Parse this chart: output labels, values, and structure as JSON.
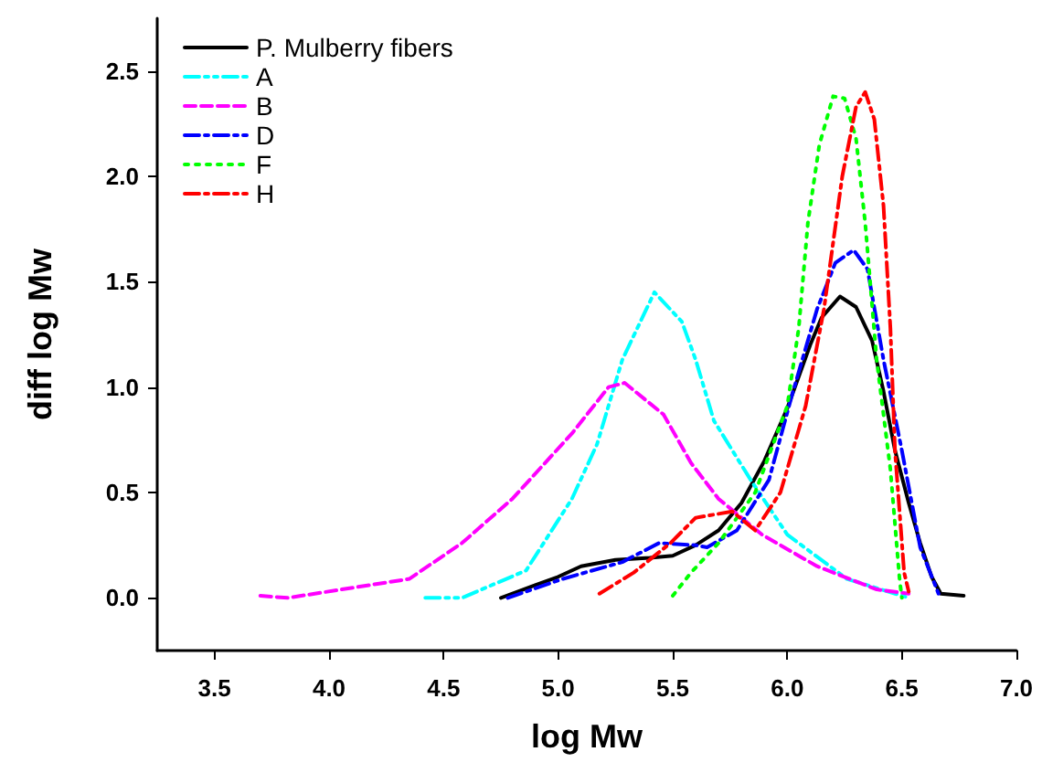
{
  "chart_data": {
    "type": "line",
    "xlabel": "log Mw",
    "ylabel": "diff log Mw",
    "xlim": [
      3.25,
      7.0
    ],
    "ylim": [
      -0.25,
      2.75
    ],
    "xticks": [
      3.5,
      {
        "value": 4,
        "label": "4.0"
      },
      4.5,
      {
        "value": 5,
        "label": "5.0"
      },
      5.5,
      {
        "value": 6,
        "label": "6.0"
      },
      6.5,
      {
        "value": 7,
        "label": "7.0"
      }
    ],
    "yticks": [
      {
        "value": 0,
        "label": "0.0"
      },
      0.5,
      {
        "value": 1,
        "label": "1.0"
      },
      1.5,
      {
        "value": 2,
        "label": "2.0"
      },
      2.5
    ],
    "grid": false,
    "legend": "top left",
    "marker": "none",
    "series": [
      {
        "name": "P. Mulberry fibers",
        "color": "#000000",
        "line_style": "solid",
        "x": [
          4.75,
          4.9,
          5.0,
          5.1,
          5.25,
          5.4,
          5.5,
          5.6,
          5.7,
          5.8,
          5.9,
          6.0,
          6.1,
          6.15,
          6.23,
          6.3,
          6.37,
          6.42,
          6.47,
          6.53,
          6.58,
          6.63,
          6.67,
          6.77
        ],
        "values": [
          0,
          0.06,
          0.1,
          0.15,
          0.18,
          0.19,
          0.2,
          0.25,
          0.32,
          0.45,
          0.65,
          0.9,
          1.2,
          1.33,
          1.43,
          1.38,
          1.22,
          0.98,
          0.7,
          0.45,
          0.26,
          0.1,
          0.02,
          0.01
        ]
      },
      {
        "name": "A",
        "color": "#00ffff",
        "line_style": "dashdotdot",
        "x": [
          4.42,
          4.58,
          4.86,
          5.06,
          5.17,
          5.28,
          5.42,
          5.54,
          5.6,
          5.68,
          5.84,
          6.0,
          6.26,
          6.53
        ],
        "values": [
          0,
          0.0,
          0.13,
          0.47,
          0.73,
          1.13,
          1.45,
          1.31,
          1.13,
          0.84,
          0.56,
          0.3,
          0.09,
          0.0
        ]
      },
      {
        "name": "B",
        "color": "#ff00ff",
        "line_style": "dashed",
        "x": [
          3.7,
          3.82,
          4.35,
          4.58,
          4.8,
          5.06,
          5.22,
          5.29,
          5.46,
          5.58,
          5.7,
          5.89,
          6.13,
          6.39,
          6.53
        ],
        "values": [
          0.01,
          0,
          0.09,
          0.26,
          0.47,
          0.78,
          1.0,
          1.02,
          0.87,
          0.64,
          0.47,
          0.3,
          0.15,
          0.04,
          0.02
        ]
      },
      {
        "name": "D",
        "color": "#0000ff",
        "line_style": "dashdot",
        "x": [
          4.78,
          5.02,
          5.28,
          5.44,
          5.6,
          5.65,
          5.78,
          5.92,
          6.02,
          6.13,
          6.21,
          6.29,
          6.35,
          6.42,
          6.5,
          6.58,
          6.66
        ],
        "values": [
          0,
          0.09,
          0.17,
          0.26,
          0.25,
          0.24,
          0.32,
          0.56,
          0.96,
          1.37,
          1.59,
          1.65,
          1.56,
          1.13,
          0.7,
          0.24,
          0.02
        ]
      },
      {
        "name": "F",
        "color": "#00ff00",
        "line_style": "dotted",
        "x": [
          5.5,
          5.58,
          5.7,
          5.86,
          6.0,
          6.05,
          6.09,
          6.14,
          6.2,
          6.25,
          6.3,
          6.34,
          6.39,
          6.45,
          6.49,
          6.5
        ],
        "values": [
          0.01,
          0.12,
          0.26,
          0.5,
          0.91,
          1.28,
          1.78,
          2.15,
          2.38,
          2.37,
          2.18,
          1.78,
          1.13,
          0.61,
          0.09,
          0
        ]
      },
      {
        "name": "H",
        "color": "#ff0000",
        "line_style": "dashdot",
        "x": [
          5.18,
          5.33,
          5.49,
          5.6,
          5.76,
          5.86,
          5.97,
          6.08,
          6.16,
          6.24,
          6.3,
          6.34,
          6.38,
          6.42,
          6.45,
          6.47,
          6.51,
          6.53
        ],
        "values": [
          0.02,
          0.12,
          0.26,
          0.38,
          0.41,
          0.32,
          0.5,
          0.91,
          1.37,
          2.0,
          2.33,
          2.4,
          2.27,
          1.86,
          1.28,
          0.7,
          0.12,
          0.03
        ]
      }
    ]
  }
}
